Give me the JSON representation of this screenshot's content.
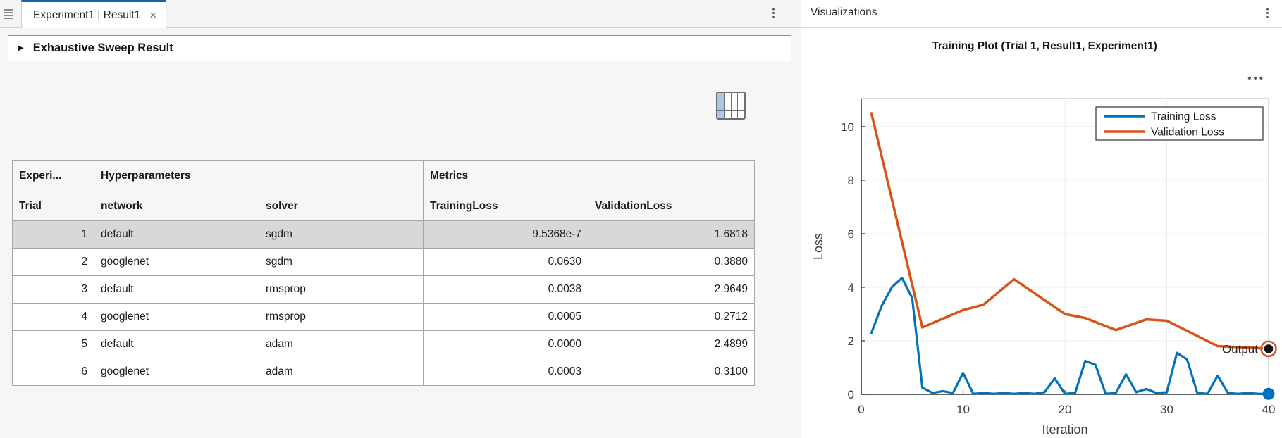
{
  "left_panel": {
    "tab": {
      "label": "Experiment1 | Result1",
      "close": "×"
    },
    "overflow_icon": "⋮",
    "section_header": {
      "expander": "▶",
      "title": "Exhaustive Sweep Result"
    },
    "table": {
      "group_headers": [
        {
          "label": "Experi...",
          "span": 1
        },
        {
          "label": "Hyperparameters",
          "span": 2
        },
        {
          "label": "Metrics",
          "span": 2
        }
      ],
      "columns": [
        "Trial",
        "network",
        "solver",
        "TrainingLoss",
        "ValidationLoss"
      ],
      "rows": [
        {
          "trial": "1",
          "network": "default",
          "solver": "sgdm",
          "training_loss": "9.5368e-7",
          "validation_loss": "1.6818",
          "selected": true
        },
        {
          "trial": "2",
          "network": "googlenet",
          "solver": "sgdm",
          "training_loss": "0.0630",
          "validation_loss": "0.3880",
          "selected": false
        },
        {
          "trial": "3",
          "network": "default",
          "solver": "rmsprop",
          "training_loss": "0.0038",
          "validation_loss": "2.9649",
          "selected": false
        },
        {
          "trial": "4",
          "network": "googlenet",
          "solver": "rmsprop",
          "training_loss": "0.0005",
          "validation_loss": "0.2712",
          "selected": false
        },
        {
          "trial": "5",
          "network": "default",
          "solver": "adam",
          "training_loss": "0.0000",
          "validation_loss": "2.4899",
          "selected": false
        },
        {
          "trial": "6",
          "network": "googlenet",
          "solver": "adam",
          "training_loss": "0.0003",
          "validation_loss": "0.3100",
          "selected": false
        }
      ]
    }
  },
  "right_panel": {
    "title": "Visualizations",
    "overflow_icon": "⋮",
    "menu_dots": "•••"
  },
  "icons": {
    "panel_menu": "panel-menu-icon",
    "tab_close": "close-icon",
    "panel_overflow": "kebab-menu-icon",
    "table_view": "table-grid-icon",
    "chart_menu": "ellipsis-menu-icon",
    "section_expander": "chevron-right-icon"
  },
  "colors": {
    "tab_accent": "#1265a8",
    "training_loss": "#0072BD",
    "validation_loss": "#D95319",
    "selected_row": "#d8d8d8",
    "grid_line": "#ececec"
  },
  "chart_data": {
    "type": "line",
    "title": "Training Plot (Trial 1, Result1, Experiment1)",
    "xlabel": "Iteration",
    "ylabel": "Loss",
    "xlim": [
      0,
      40
    ],
    "ylim": [
      0,
      11.05
    ],
    "xticks": [
      0,
      10,
      20,
      30,
      40
    ],
    "yticks": [
      0,
      2,
      4,
      6,
      8,
      10
    ],
    "grid": true,
    "legend_position": "top-right",
    "legend": [
      "Training Loss",
      "Validation Loss"
    ],
    "annotation": {
      "label": "Output",
      "x": 40,
      "y": 1.7
    },
    "end_marker": {
      "series": "Training Loss",
      "x": 40,
      "y": 0.02
    },
    "series": [
      {
        "name": "Training Loss",
        "color": "#0072BD",
        "x": [
          1,
          2,
          3,
          4,
          5,
          6,
          7,
          8,
          9,
          10,
          11,
          12,
          13,
          14,
          15,
          16,
          17,
          18,
          19,
          20,
          21,
          22,
          23,
          24,
          25,
          26,
          27,
          28,
          29,
          30,
          31,
          32,
          33,
          34,
          35,
          36,
          37,
          38,
          39,
          40
        ],
        "y": [
          2.3,
          3.3,
          4.0,
          4.35,
          3.6,
          0.25,
          0.05,
          0.12,
          0.05,
          0.8,
          0.02,
          0.05,
          0.02,
          0.05,
          0.02,
          0.05,
          0.02,
          0.08,
          0.6,
          0.02,
          0.05,
          1.25,
          1.1,
          0.02,
          0.05,
          0.75,
          0.08,
          0.2,
          0.05,
          0.08,
          1.55,
          1.3,
          0.05,
          0.02,
          0.7,
          0.05,
          0.02,
          0.05,
          0.02,
          0.02
        ]
      },
      {
        "name": "Validation Loss",
        "color": "#D95319",
        "x": [
          1,
          6,
          10,
          12,
          15,
          20,
          22,
          25,
          28,
          30,
          35,
          38,
          40
        ],
        "y": [
          10.5,
          2.5,
          3.15,
          3.35,
          4.3,
          3.0,
          2.85,
          2.4,
          2.8,
          2.75,
          1.8,
          1.75,
          1.7
        ]
      }
    ]
  }
}
